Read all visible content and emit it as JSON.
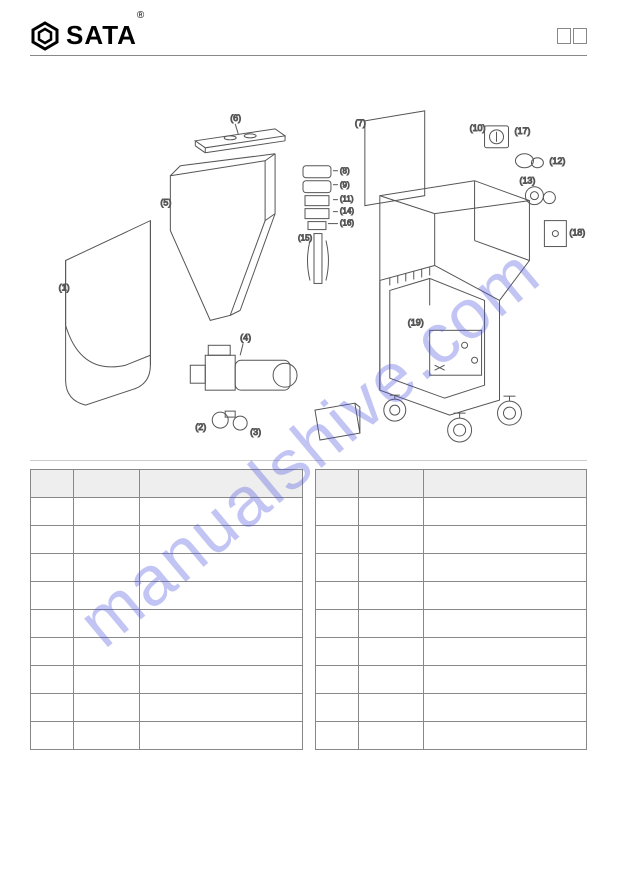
{
  "header": {
    "brand": "SATA",
    "registered": "®"
  },
  "diagram": {
    "callouts": [
      "(1)",
      "(2)",
      "(3)",
      "(4)",
      "(5)",
      "(6)",
      "(7)",
      "(8)",
      "(9)",
      "(10)",
      "(11)",
      "(12)",
      "(13)",
      "(14)",
      "(15)",
      "(16)",
      "(17)",
      "(18)",
      "(19)"
    ],
    "line_color": "#555555",
    "line_width": 1,
    "background": "#ffffff"
  },
  "tables": {
    "left": {
      "headers": [
        "",
        "",
        ""
      ],
      "rows": [
        [
          "",
          "",
          ""
        ],
        [
          "",
          "",
          ""
        ],
        [
          "",
          "",
          ""
        ],
        [
          "",
          "",
          ""
        ],
        [
          "",
          "",
          ""
        ],
        [
          "",
          "",
          ""
        ],
        [
          "",
          "",
          ""
        ],
        [
          "",
          "",
          ""
        ],
        [
          "",
          "",
          ""
        ]
      ]
    },
    "right": {
      "headers": [
        "",
        "",
        ""
      ],
      "rows": [
        [
          "",
          "",
          ""
        ],
        [
          "",
          "",
          ""
        ],
        [
          "",
          "",
          ""
        ],
        [
          "",
          "",
          ""
        ],
        [
          "",
          "",
          ""
        ],
        [
          "",
          "",
          ""
        ],
        [
          "",
          "",
          ""
        ],
        [
          "",
          "",
          ""
        ],
        [
          "",
          "",
          ""
        ]
      ]
    }
  },
  "watermark": "manualshive.com",
  "colors": {
    "border": "#888888",
    "text": "#000000",
    "watermark": "rgba(80,90,220,0.35)"
  }
}
